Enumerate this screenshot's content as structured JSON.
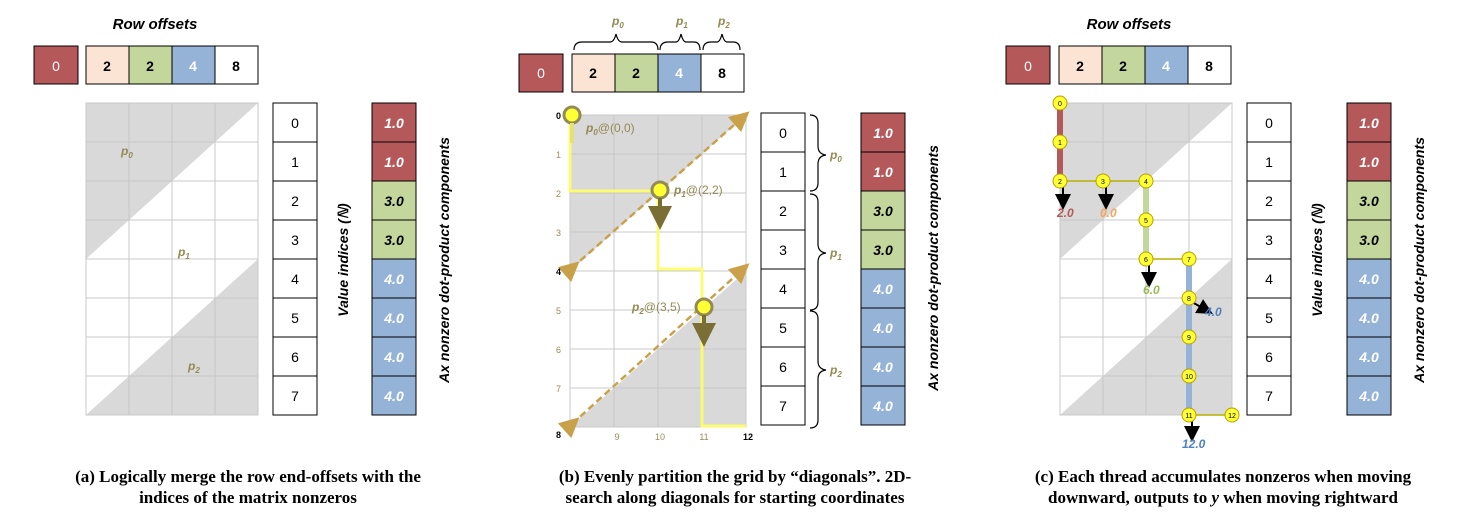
{
  "colors": {
    "red": "#b5585a",
    "peach": "#fbe4d3",
    "green": "#c3d69b",
    "blue": "#95b3d7",
    "gray": "#d9d9d9",
    "olive": "#948a54",
    "tan": "#c9a14a",
    "yellow": "#ffff33"
  },
  "offsets": {
    "title": "Row offsets",
    "first": "0",
    "values": [
      "2",
      "2",
      "4",
      "8"
    ]
  },
  "indices": [
    "0",
    "1",
    "2",
    "3",
    "4",
    "5",
    "6",
    "7"
  ],
  "components": [
    "1.0",
    "1.0",
    "3.0",
    "3.0",
    "4.0",
    "4.0",
    "4.0",
    "4.0"
  ],
  "labels": {
    "value_indices": "Value indices (ℕ)",
    "ax_components": "Ax nonzero dot-product components",
    "p0": "p",
    "p0_sub": "0",
    "p1": "p",
    "p1_sub": "1",
    "p2": "p",
    "p2_sub": "2"
  },
  "panel_b": {
    "p0_coord": "@(0,0)",
    "p1_coord": "@(2,2)",
    "p2_coord": "@(3,5)",
    "left_axis": [
      "0",
      "1",
      "2",
      "3",
      "4",
      "5",
      "6",
      "7",
      "8"
    ],
    "bottom_axis": [
      "9",
      "10",
      "11",
      "12"
    ]
  },
  "panel_c": {
    "nodes": [
      "0",
      "1",
      "2",
      "3",
      "4",
      "5",
      "6",
      "7",
      "8",
      "9",
      "10",
      "11",
      "12"
    ],
    "outputs": [
      "2.0",
      "0.0",
      "6.0",
      "4.0",
      "12.0"
    ]
  },
  "captions": {
    "a1": "(a) Logically merge the row end-offsets with the",
    "a2": "indices of the matrix nonzeros",
    "b1": "(b) Evenly partition the grid by “diagonals”.  2D-",
    "b2": "search along diagonals for starting coordinates",
    "c1": "(c) Each thread accumulates nonzeros when moving",
    "c2_pre": "downward, outputs to ",
    "c2_y": "y",
    "c2_post": " when moving rightward"
  }
}
